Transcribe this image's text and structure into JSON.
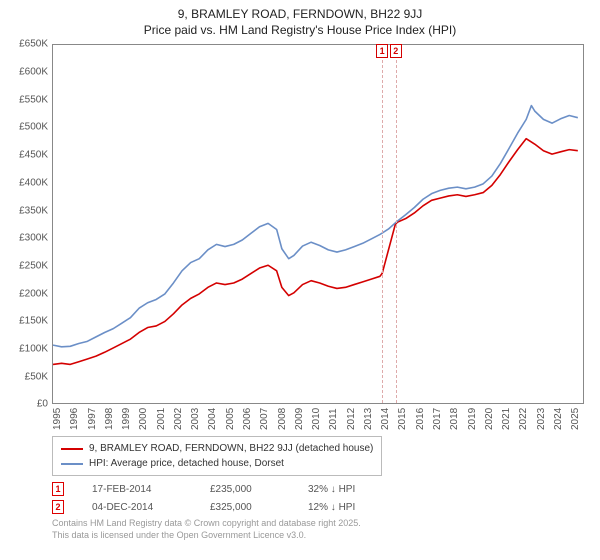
{
  "title": {
    "line1": "9, BRAMLEY ROAD, FERNDOWN, BH22 9JJ",
    "line2": "Price paid vs. HM Land Registry's House Price Index (HPI)"
  },
  "chart": {
    "type": "line",
    "background_color": "#ffffff",
    "border_color": "#888888",
    "xlim": [
      1995,
      2025.8
    ],
    "ylim": [
      0,
      650000
    ],
    "y_ticks": [
      0,
      50000,
      100000,
      150000,
      200000,
      250000,
      300000,
      350000,
      400000,
      450000,
      500000,
      550000,
      600000,
      650000
    ],
    "y_tick_labels": [
      "£0",
      "£50K",
      "£100K",
      "£150K",
      "£200K",
      "£250K",
      "£300K",
      "£350K",
      "£400K",
      "£450K",
      "£500K",
      "£550K",
      "£600K",
      "£650K"
    ],
    "x_ticks": [
      1995,
      1996,
      1997,
      1998,
      1999,
      2000,
      2001,
      2002,
      2003,
      2004,
      2005,
      2006,
      2007,
      2008,
      2009,
      2010,
      2011,
      2012,
      2013,
      2014,
      2015,
      2016,
      2017,
      2018,
      2019,
      2020,
      2021,
      2022,
      2023,
      2024,
      2025
    ],
    "label_fontsize": 10,
    "line_width": 1.6,
    "series": [
      {
        "name": "price_paid",
        "label": "9, BRAMLEY ROAD, FERNDOWN, BH22 9JJ (detached house)",
        "color": "#d40000",
        "points": [
          [
            1995.0,
            70000
          ],
          [
            1995.5,
            72000
          ],
          [
            1996.0,
            70000
          ],
          [
            1996.5,
            75000
          ],
          [
            1997.0,
            80000
          ],
          [
            1997.5,
            85000
          ],
          [
            1998.0,
            92000
          ],
          [
            1998.5,
            100000
          ],
          [
            1999.0,
            108000
          ],
          [
            1999.5,
            116000
          ],
          [
            2000.0,
            128000
          ],
          [
            2000.5,
            137000
          ],
          [
            2001.0,
            140000
          ],
          [
            2001.5,
            148000
          ],
          [
            2002.0,
            162000
          ],
          [
            2002.5,
            178000
          ],
          [
            2003.0,
            190000
          ],
          [
            2003.5,
            198000
          ],
          [
            2004.0,
            210000
          ],
          [
            2004.5,
            218000
          ],
          [
            2005.0,
            215000
          ],
          [
            2005.5,
            218000
          ],
          [
            2006.0,
            225000
          ],
          [
            2006.5,
            235000
          ],
          [
            2007.0,
            245000
          ],
          [
            2007.5,
            250000
          ],
          [
            2008.0,
            240000
          ],
          [
            2008.3,
            210000
          ],
          [
            2008.7,
            195000
          ],
          [
            2009.0,
            200000
          ],
          [
            2009.5,
            215000
          ],
          [
            2010.0,
            222000
          ],
          [
            2010.5,
            218000
          ],
          [
            2011.0,
            212000
          ],
          [
            2011.5,
            208000
          ],
          [
            2012.0,
            210000
          ],
          [
            2012.5,
            215000
          ],
          [
            2013.0,
            220000
          ],
          [
            2013.5,
            225000
          ],
          [
            2014.0,
            230000
          ],
          [
            2014.12,
            235000
          ],
          [
            2014.13,
            235000
          ],
          [
            2014.9,
            325000
          ],
          [
            2014.92,
            325000
          ],
          [
            2015.0,
            328000
          ],
          [
            2015.5,
            335000
          ],
          [
            2016.0,
            345000
          ],
          [
            2016.5,
            358000
          ],
          [
            2017.0,
            368000
          ],
          [
            2017.5,
            372000
          ],
          [
            2018.0,
            376000
          ],
          [
            2018.5,
            378000
          ],
          [
            2019.0,
            375000
          ],
          [
            2019.5,
            378000
          ],
          [
            2020.0,
            382000
          ],
          [
            2020.5,
            395000
          ],
          [
            2021.0,
            415000
          ],
          [
            2021.5,
            438000
          ],
          [
            2022.0,
            460000
          ],
          [
            2022.5,
            480000
          ],
          [
            2023.0,
            470000
          ],
          [
            2023.5,
            458000
          ],
          [
            2024.0,
            452000
          ],
          [
            2024.5,
            456000
          ],
          [
            2025.0,
            460000
          ],
          [
            2025.5,
            458000
          ]
        ]
      },
      {
        "name": "hpi",
        "label": "HPI: Average price, detached house, Dorset",
        "color": "#6b8fc7",
        "points": [
          [
            1995.0,
            105000
          ],
          [
            1995.5,
            102000
          ],
          [
            1996.0,
            103000
          ],
          [
            1996.5,
            108000
          ],
          [
            1997.0,
            112000
          ],
          [
            1997.5,
            120000
          ],
          [
            1998.0,
            128000
          ],
          [
            1998.5,
            135000
          ],
          [
            1999.0,
            145000
          ],
          [
            1999.5,
            155000
          ],
          [
            2000.0,
            172000
          ],
          [
            2000.5,
            182000
          ],
          [
            2001.0,
            188000
          ],
          [
            2001.5,
            198000
          ],
          [
            2002.0,
            218000
          ],
          [
            2002.5,
            240000
          ],
          [
            2003.0,
            255000
          ],
          [
            2003.5,
            262000
          ],
          [
            2004.0,
            278000
          ],
          [
            2004.5,
            288000
          ],
          [
            2005.0,
            284000
          ],
          [
            2005.5,
            288000
          ],
          [
            2006.0,
            296000
          ],
          [
            2006.5,
            308000
          ],
          [
            2007.0,
            320000
          ],
          [
            2007.5,
            326000
          ],
          [
            2008.0,
            315000
          ],
          [
            2008.3,
            280000
          ],
          [
            2008.7,
            262000
          ],
          [
            2009.0,
            268000
          ],
          [
            2009.5,
            285000
          ],
          [
            2010.0,
            292000
          ],
          [
            2010.5,
            286000
          ],
          [
            2011.0,
            278000
          ],
          [
            2011.5,
            274000
          ],
          [
            2012.0,
            278000
          ],
          [
            2012.5,
            284000
          ],
          [
            2013.0,
            290000
          ],
          [
            2013.5,
            298000
          ],
          [
            2014.0,
            306000
          ],
          [
            2014.5,
            316000
          ],
          [
            2015.0,
            330000
          ],
          [
            2015.5,
            342000
          ],
          [
            2016.0,
            355000
          ],
          [
            2016.5,
            370000
          ],
          [
            2017.0,
            380000
          ],
          [
            2017.5,
            386000
          ],
          [
            2018.0,
            390000
          ],
          [
            2018.5,
            392000
          ],
          [
            2019.0,
            389000
          ],
          [
            2019.5,
            392000
          ],
          [
            2020.0,
            398000
          ],
          [
            2020.5,
            412000
          ],
          [
            2021.0,
            435000
          ],
          [
            2021.5,
            462000
          ],
          [
            2022.0,
            490000
          ],
          [
            2022.5,
            515000
          ],
          [
            2022.8,
            540000
          ],
          [
            2023.0,
            530000
          ],
          [
            2023.5,
            515000
          ],
          [
            2024.0,
            508000
          ],
          [
            2024.5,
            516000
          ],
          [
            2025.0,
            522000
          ],
          [
            2025.5,
            518000
          ]
        ]
      }
    ],
    "sale_markers": [
      {
        "id": "1",
        "x": 2014.13,
        "color": "#d40000",
        "dash_color": "#deaaaa"
      },
      {
        "id": "2",
        "x": 2014.92,
        "color": "#d40000",
        "dash_color": "#deaaaa"
      }
    ]
  },
  "legend": {
    "border_color": "#bbbbbb",
    "fontsize": 10
  },
  "sales": [
    {
      "marker": "1",
      "date": "17-FEB-2014",
      "price": "£235,000",
      "delta": "32% ↓ HPI"
    },
    {
      "marker": "2",
      "date": "04-DEC-2014",
      "price": "£325,000",
      "delta": "12% ↓ HPI"
    }
  ],
  "footer": {
    "line1": "Contains HM Land Registry data © Crown copyright and database right 2025.",
    "line2": "This data is licensed under the Open Government Licence v3.0."
  }
}
